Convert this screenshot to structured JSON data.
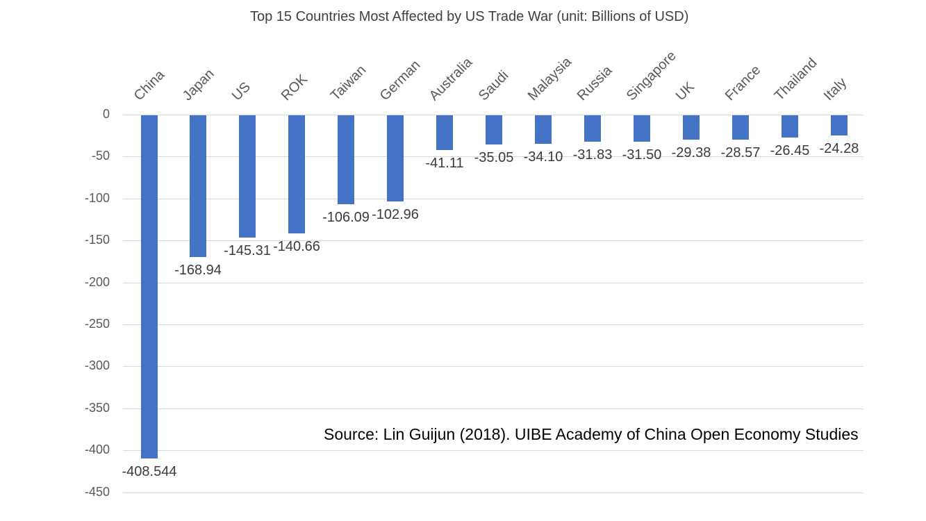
{
  "title": "Top 15 Countries Most Affected by US Trade War (unit: Billions of USD)",
  "source_note": "Source: Lin Guijun (2018). UIBE Academy of China Open Economy Studies",
  "colors": {
    "bar": "#4472c4",
    "gridline": "#d9d9d9",
    "axis_text": "#595959",
    "value_text": "#3b3b3b",
    "title_text": "#404040",
    "source_text": "#000000",
    "background": "#ffffff"
  },
  "chart_data": {
    "type": "bar",
    "title": "Top 15 Countries Most Affected by US Trade War (unit: Billions of USD)",
    "unit": "Billions of USD",
    "orientation": "vertical-negative",
    "categories": [
      "China",
      "Japan",
      "US",
      "ROK",
      "Taiwan",
      "German",
      "Australia",
      "Saudi",
      "Malaysia",
      "Russia",
      "Singapore",
      "UK",
      "France",
      "Thailand",
      "Italy"
    ],
    "values": [
      -408.544,
      -168.94,
      -145.31,
      -140.66,
      -106.09,
      -102.96,
      -41.11,
      -35.05,
      -34.1,
      -31.83,
      -31.5,
      -29.38,
      -28.57,
      -26.45,
      -24.28
    ],
    "value_labels": [
      "-408.544",
      "-168.94",
      "-145.31",
      "-140.66",
      "-106.09",
      "-102.96",
      "-41.11",
      "-35.05",
      "-34.10",
      "-31.83",
      "-31.50",
      "-29.38",
      "-28.57",
      "-26.45",
      "-24.28"
    ],
    "xlabel": "",
    "ylabel": "",
    "ylim": [
      -450,
      0
    ],
    "yticks": [
      0,
      -50,
      -100,
      -150,
      -200,
      -250,
      -300,
      -350,
      -400,
      -450
    ],
    "ytick_labels": [
      "0",
      "-50",
      "-100",
      "-150",
      "-200",
      "-250",
      "-300",
      "-350",
      "-400",
      "-450"
    ],
    "grid": true,
    "legend": false,
    "annotation": "Source: Lin Guijun (2018). UIBE Academy of China Open Economy Studies"
  }
}
